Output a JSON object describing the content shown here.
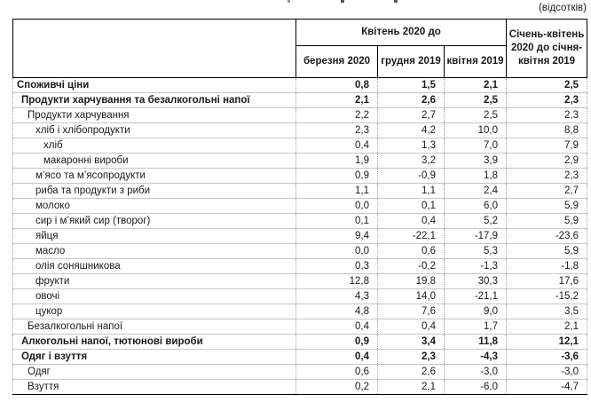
{
  "note": "(відсотків)",
  "colors": {
    "text": "#1a1a1a",
    "header_border": "#000000",
    "grid_line": "#c6c6c6"
  },
  "table": {
    "header": {
      "group_label": "Квітень 2020 до",
      "sub_columns": [
        "березня 2020",
        "грудня 2019",
        "квітня 2019"
      ],
      "last_column": "Січень-квітень 2020 до січня-квітня 2019"
    },
    "rows": [
      {
        "label": "Споживчі ціни",
        "indent": 0,
        "bold": true,
        "values": [
          "0,8",
          "1,5",
          "2,1",
          "2,5"
        ]
      },
      {
        "label": "Продукти харчування та безалкогольні напої",
        "indent": 1,
        "bold": true,
        "values": [
          "2,1",
          "2,6",
          "2,5",
          "2,3"
        ]
      },
      {
        "label": "Продукти харчування",
        "indent": 2,
        "bold": false,
        "values": [
          "2,2",
          "2,7",
          "2,5",
          "2,3"
        ]
      },
      {
        "label": "хліб і хлібопродукти",
        "indent": 3,
        "bold": false,
        "values": [
          "2,3",
          "4,2",
          "10,0",
          "8,8"
        ]
      },
      {
        "label": "хліб",
        "indent": 4,
        "bold": false,
        "values": [
          "0,4",
          "1,3",
          "7,0",
          "7,9"
        ]
      },
      {
        "label": "макаронні вироби",
        "indent": 4,
        "bold": false,
        "values": [
          "1,9",
          "3,2",
          "3,9",
          "2,9"
        ]
      },
      {
        "label": "м’ясо та м’ясопродукти",
        "indent": 3,
        "bold": false,
        "values": [
          "0,9",
          "-0,9",
          "1,8",
          "2,3"
        ]
      },
      {
        "label": "риба та продукти з риби",
        "indent": 3,
        "bold": false,
        "values": [
          "1,1",
          "1,1",
          "2,4",
          "2,7"
        ]
      },
      {
        "label": "молоко",
        "indent": 3,
        "bold": false,
        "values": [
          "0,0",
          "0,1",
          "6,0",
          "5,9"
        ]
      },
      {
        "label": "сир і м’який сир (творог)",
        "indent": 3,
        "bold": false,
        "values": [
          "0,1",
          "0,4",
          "5,2",
          "5,9"
        ]
      },
      {
        "label": "яйця",
        "indent": 3,
        "bold": false,
        "values": [
          "9,4",
          "-22,1",
          "-17,9",
          "-23,6"
        ]
      },
      {
        "label": "масло",
        "indent": 3,
        "bold": false,
        "values": [
          "0,0",
          "0,6",
          "5,3",
          "5,9"
        ]
      },
      {
        "label": "олія соняшникова",
        "indent": 3,
        "bold": false,
        "values": [
          "0,3",
          "-0,2",
          "-1,3",
          "-1,8"
        ]
      },
      {
        "label": "фрукти",
        "indent": 3,
        "bold": false,
        "values": [
          "12,8",
          "19,8",
          "30,3",
          "17,6"
        ]
      },
      {
        "label": "овочі",
        "indent": 3,
        "bold": false,
        "values": [
          "4,3",
          "14,0",
          "-21,1",
          "-15,2"
        ]
      },
      {
        "label": "цукор",
        "indent": 3,
        "bold": false,
        "values": [
          "4,8",
          "7,6",
          "9,0",
          "3,5"
        ]
      },
      {
        "label": "Безалкогольні напої",
        "indent": 2,
        "bold": false,
        "values": [
          "0,4",
          "0,4",
          "1,7",
          "2,1"
        ]
      },
      {
        "label": "Алкогольні напої, тютюнові вироби",
        "indent": 1,
        "bold": true,
        "values": [
          "0,9",
          "3,4",
          "11,8",
          "12,1"
        ]
      },
      {
        "label": "Одяг і взуття",
        "indent": 1,
        "bold": true,
        "values": [
          "0,4",
          "2,3",
          "-4,3",
          "-3,6"
        ]
      },
      {
        "label": "Одяг",
        "indent": 2,
        "bold": false,
        "values": [
          "0,6",
          "2,6",
          "-3,0",
          "-3,0"
        ]
      },
      {
        "label": "Взуття",
        "indent": 2,
        "bold": false,
        "values": [
          "0,2",
          "2,1",
          "-6,0",
          "-4,7"
        ]
      }
    ]
  }
}
